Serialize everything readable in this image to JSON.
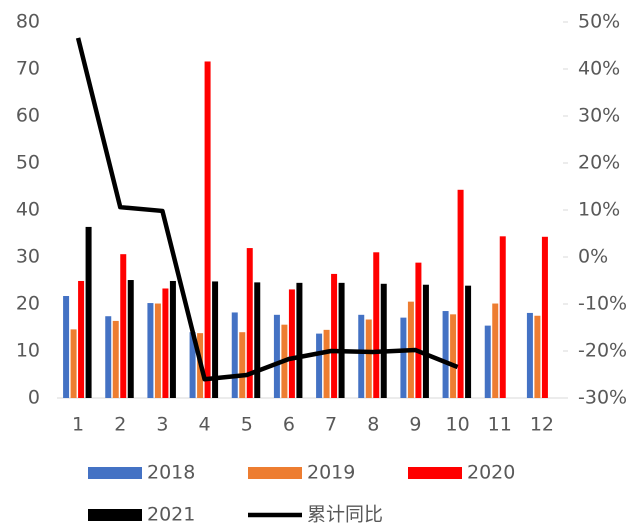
{
  "chart_data": {
    "type": "bar-line",
    "categories": [
      "1",
      "2",
      "3",
      "4",
      "5",
      "6",
      "7",
      "8",
      "9",
      "10",
      "11",
      "12"
    ],
    "series": [
      {
        "name": "2018",
        "color": "#4472c4",
        "values": [
          21.7,
          17.4,
          20.2,
          14.0,
          18.2,
          17.7,
          13.7,
          17.7,
          17.1,
          18.5,
          15.4,
          18.1
        ]
      },
      {
        "name": "2019",
        "color": "#ed7d31",
        "values": [
          14.6,
          16.4,
          20.1,
          13.8,
          14.0,
          15.6,
          14.5,
          16.7,
          20.5,
          17.8,
          20.1,
          17.5
        ]
      },
      {
        "name": "2020",
        "color": "#ff0000",
        "values": [
          24.9,
          30.6,
          23.3,
          71.6,
          31.9,
          23.1,
          26.4,
          31.0,
          28.8,
          44.3,
          34.4,
          34.3
        ]
      },
      {
        "name": "2021",
        "color": "#000000",
        "values": [
          36.4,
          25.1,
          24.9,
          24.8,
          24.6,
          24.5,
          24.5,
          24.3,
          24.1,
          23.9,
          null,
          null
        ]
      },
      {
        "name": "累计同比",
        "color": "#000000",
        "axis": "y2",
        "line": true,
        "values": [
          46.6,
          10.6,
          9.8,
          -26.0,
          -25.1,
          -21.7,
          -20.0,
          -20.2,
          -19.8,
          -23.4,
          null,
          null
        ]
      }
    ],
    "ylim": [
      0,
      80
    ],
    "yticks": [
      0,
      10,
      20,
      30,
      40,
      50,
      60,
      70,
      80
    ],
    "y2lim": [
      -30,
      50
    ],
    "y2ticks": [
      {
        "value": -30,
        "label": "-30%"
      },
      {
        "value": -20,
        "label": "-20%"
      },
      {
        "value": -10,
        "label": "-10%"
      },
      {
        "value": 0,
        "label": "0%"
      },
      {
        "value": 10,
        "label": "10%"
      },
      {
        "value": 20,
        "label": "20%"
      },
      {
        "value": 30,
        "label": "30%"
      },
      {
        "value": 40,
        "label": "40%"
      },
      {
        "value": 50,
        "label": "50%"
      }
    ]
  }
}
